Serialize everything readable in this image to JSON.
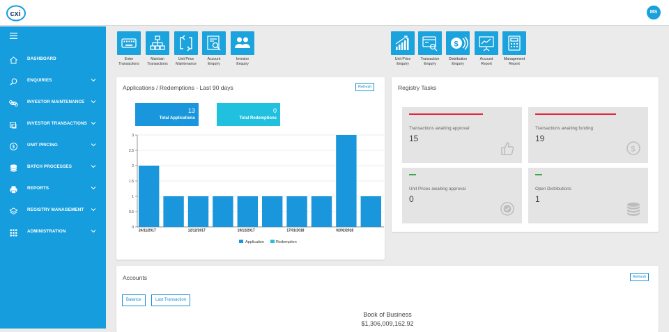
{
  "app": {
    "user_initials": "MS"
  },
  "sidebar": {
    "items": [
      {
        "label": "DASHBOARD",
        "icon": "home-icon",
        "chevron": false
      },
      {
        "label": "ENQUIRIES",
        "icon": "search-icon",
        "chevron": true
      },
      {
        "label": "INVESTOR MAINTENANCE",
        "icon": "command-icon",
        "chevron": true
      },
      {
        "label": "INVESTOR TRANSACTIONS",
        "icon": "transactions-icon",
        "chevron": true
      },
      {
        "label": "UNIT PRICING",
        "icon": "dollar-icon",
        "chevron": true
      },
      {
        "label": "BATCH PROCESSES",
        "icon": "database-icon",
        "chevron": true
      },
      {
        "label": "REPORTS",
        "icon": "printer-icon",
        "chevron": true
      },
      {
        "label": "REGISTRY MANAGEMENT",
        "icon": "layers-icon",
        "chevron": true
      },
      {
        "label": "ADMINISTRATION",
        "icon": "grid-icon",
        "chevron": true
      }
    ]
  },
  "quick_actions_left": [
    {
      "line1": "Enter",
      "line2": "Transactions",
      "icon": "keyboard-icon"
    },
    {
      "line1": "Maintain",
      "line2": "Transactions",
      "icon": "sitemap-icon"
    },
    {
      "line1": "Unit Price",
      "line2": "Maintenance",
      "icon": "exchange-icon"
    },
    {
      "line1": "Account",
      "line2": "Enquiry",
      "icon": "document-search-icon"
    },
    {
      "line1": "Investor",
      "line2": "Enquiry",
      "icon": "users-icon"
    }
  ],
  "quick_actions_right": [
    {
      "line1": "Unit Price",
      "line2": "Enquiry",
      "icon": "bar-chart-icon"
    },
    {
      "line1": "Transaction",
      "line2": "Enquiry",
      "icon": "transaction-search-icon"
    },
    {
      "line1": "Distribution",
      "line2": "Enquiry",
      "icon": "coins-icon"
    },
    {
      "line1": "Account",
      "line2": "Report",
      "icon": "presentation-icon"
    },
    {
      "line1": "Management",
      "line2": "Report",
      "icon": "calculator-icon"
    }
  ],
  "applications": {
    "title": "Applications / Redemptions - Last 90 days",
    "refresh_label": "Refresh",
    "total_applications": {
      "value": "13",
      "label": "Total Applications"
    },
    "total_redemptions": {
      "value": "0",
      "label": "Total Redemptions"
    },
    "legend": {
      "application": "Application",
      "redemption": "Redemption"
    }
  },
  "chart_data": {
    "type": "bar",
    "categories": [
      "24/11/2017",
      "",
      "12/12/2017",
      "",
      "19/12/2017",
      "",
      "17/01/2018",
      "",
      "02/02/2018",
      ""
    ],
    "x_tick_labels": [
      "24/11/2017",
      "12/12/2017",
      "19/12/2017",
      "17/01/2018",
      "02/02/2018"
    ],
    "series": [
      {
        "name": "Application",
        "values": [
          2,
          1,
          1,
          1,
          1,
          1,
          1,
          1,
          3,
          1
        ],
        "color": "#1a96dd"
      },
      {
        "name": "Redemption",
        "values": [
          0,
          0,
          0,
          0,
          0,
          0,
          0,
          0,
          0,
          0
        ],
        "color": "#22c0df"
      }
    ],
    "ylim": [
      0,
      3
    ],
    "yticks": [
      "0",
      "0.5",
      "1",
      "1.5",
      "2",
      "2.5",
      "3"
    ],
    "grid": true,
    "legend_position": "bottom"
  },
  "registry": {
    "title": "Registry Tasks",
    "tasks": [
      {
        "label": "Transactions awaiting approval",
        "value": "15",
        "bar_color": "#e0263a",
        "icon": "thumbs-up-icon"
      },
      {
        "label": "Transactions awaiting funding",
        "value": "19",
        "bar_color": "#e0263a",
        "icon": "dollar-circle-icon"
      },
      {
        "label": "Unit Prices awaiting approval",
        "value": "0",
        "bar_color": "#3aab49",
        "icon": "check-circle-icon"
      },
      {
        "label": "Open Distributions",
        "value": "1",
        "bar_color": "#3aab49",
        "icon": "database-stack-icon"
      }
    ]
  },
  "accounts": {
    "title": "Accounts",
    "refresh_label": "Refresh",
    "balance_label": "Balance",
    "last_transaction_label": "Last Transaction",
    "book_title": "Book of Business",
    "book_value": "$1,306,009,162.92"
  },
  "colors": {
    "brand": "#159ddd",
    "accent": "#1ba3de"
  }
}
